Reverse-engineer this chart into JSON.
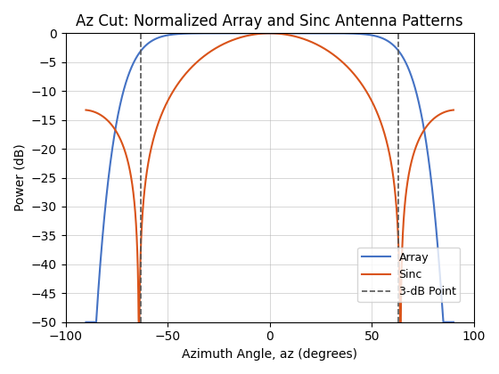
{
  "title": "Az Cut: Normalized Array and Sinc Antenna Patterns",
  "xlabel": "Azimuth Angle, az (degrees)",
  "ylabel": "Power (dB)",
  "xlim": [
    -100,
    100
  ],
  "ylim": [
    -50,
    0
  ],
  "xticks": [
    -100,
    -50,
    0,
    50,
    100
  ],
  "yticks": [
    0,
    -5,
    -10,
    -15,
    -20,
    -25,
    -30,
    -35,
    -40,
    -45,
    -50
  ],
  "array_color": "#4472C4",
  "sinc_color": "#D95319",
  "vline_color": "#555555",
  "vline_x1": -63.0,
  "vline_x2": 63.0,
  "sinc_theta_scale": 64.0,
  "array_power": 26.0,
  "figsize": [
    5.6,
    4.2
  ],
  "dpi": 100,
  "legend_entries": [
    "Array",
    "Sinc",
    "3-dB Point"
  ]
}
